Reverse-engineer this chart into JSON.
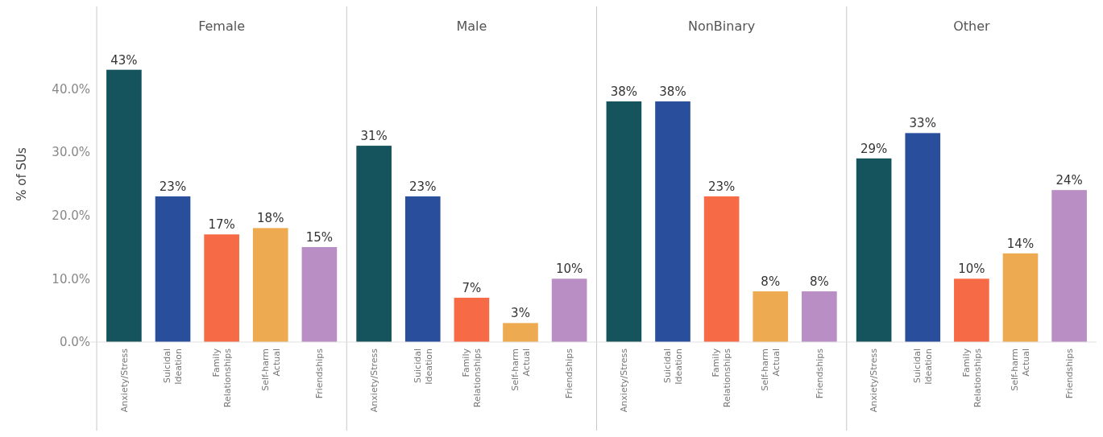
{
  "chart_data": [
    {
      "type": "bar",
      "title": "Female",
      "ylabel": "% of SUs",
      "categories": [
        "Anxiety/Stress",
        "Suicidal Ideation",
        "Family Relationships",
        "Self-harm Actual",
        "Friendships"
      ],
      "values": [
        43,
        23,
        17,
        18,
        15
      ],
      "colors": [
        "#15545c",
        "#294f9c",
        "#f66b45",
        "#edaa50",
        "#b98ec4"
      ],
      "value_labels": [
        "43%",
        "23%",
        "17%",
        "18%",
        "15%"
      ],
      "ylim": [
        0,
        53
      ],
      "yticks": [
        {
          "value": 0,
          "label": "0.0%"
        },
        {
          "value": 10,
          "label": "10.0%"
        },
        {
          "value": 20,
          "label": "20.0%"
        },
        {
          "value": 30,
          "label": "30.0%"
        },
        {
          "value": 40,
          "label": "40.0%"
        }
      ],
      "grid": false
    },
    {
      "type": "bar",
      "title": "Male",
      "categories": [
        "Anxiety/Stress",
        "Suicidal Ideation",
        "Family Relationships",
        "Self-harm Actual",
        "Friendships"
      ],
      "values": [
        31,
        23,
        7,
        3,
        10
      ],
      "colors": [
        "#15545c",
        "#294f9c",
        "#f66b45",
        "#edaa50",
        "#b98ec4"
      ],
      "value_labels": [
        "31%",
        "23%",
        "7%",
        "3%",
        "10%"
      ],
      "ylim": [
        0,
        53
      ],
      "tick_labels": "x",
      "grid": false
    },
    {
      "type": "bar",
      "title": "NonBinary",
      "categories": [
        "Anxiety/Stress",
        "Suicidal Ideation",
        "Family Relationships",
        "Self-harm Actual",
        "Friendships"
      ],
      "values": [
        38,
        38,
        23,
        8,
        8
      ],
      "colors": [
        "#15545c",
        "#294f9c",
        "#f66b45",
        "#edaa50",
        "#b98ec4"
      ],
      "value_labels": [
        "38%",
        "38%",
        "23%",
        "8%",
        "8%"
      ],
      "ylim": [
        0,
        53
      ],
      "tick_labels": "x",
      "grid": false
    },
    {
      "type": "bar",
      "title": "Other",
      "categories": [
        "Anxiety/Stress",
        "Suicidal Ideation",
        "Family Relationships",
        "Self-harm Actual",
        "Friendships"
      ],
      "values": [
        29,
        33,
        10,
        14,
        24
      ],
      "colors": [
        "#15545c",
        "#294f9c",
        "#f66b45",
        "#edaa50",
        "#b98ec4"
      ],
      "value_labels": [
        "29%",
        "33%",
        "10%",
        "14%",
        "24%"
      ],
      "ylim": [
        0,
        53
      ],
      "tick_labels": "x",
      "grid": false
    }
  ]
}
